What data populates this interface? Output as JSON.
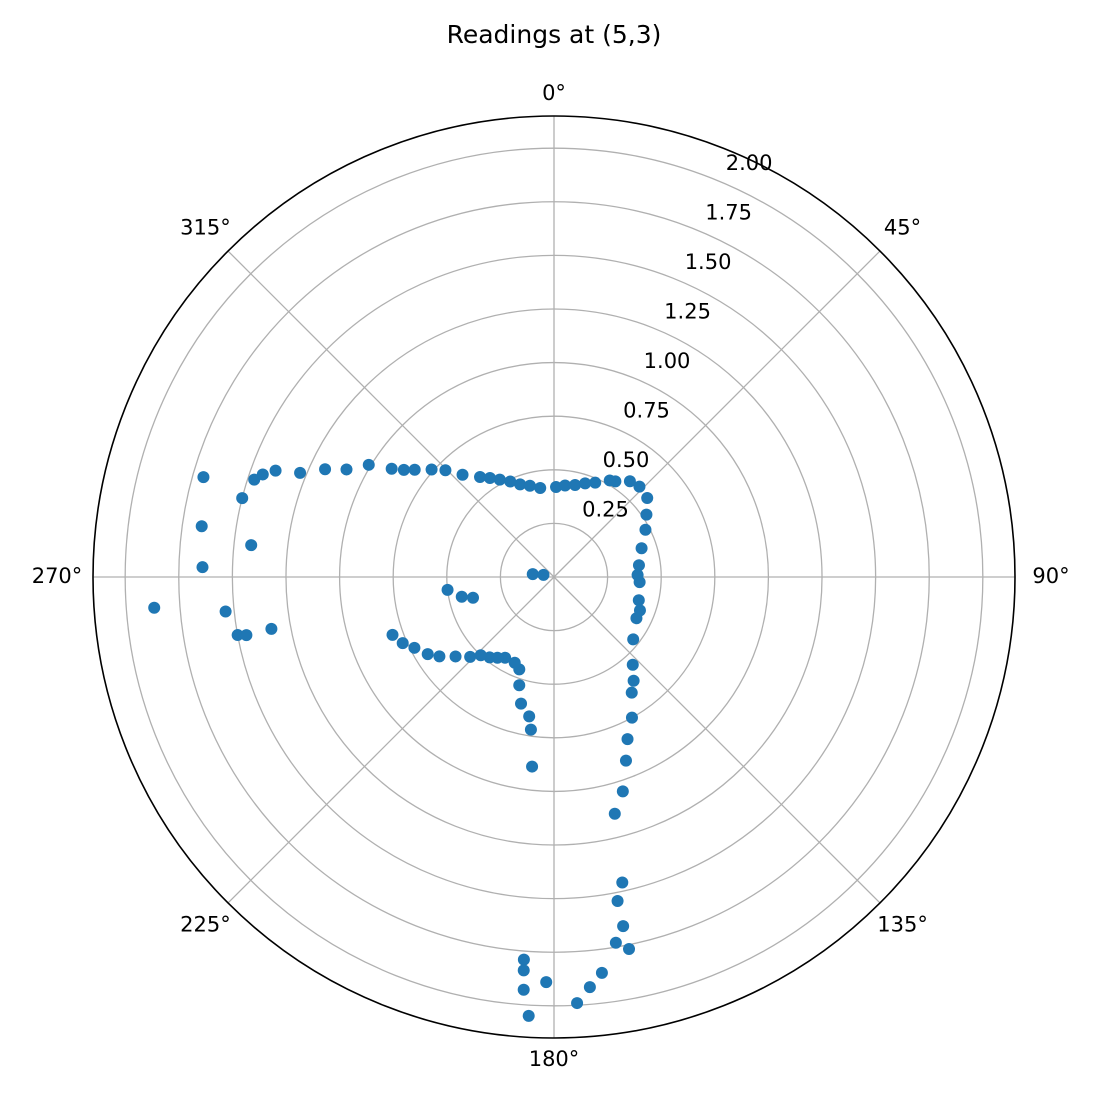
{
  "chart_data": {
    "type": "polar-scatter",
    "title": "Readings at (5,3)",
    "color": "#1f77b4",
    "ylim": [
      0,
      2.15
    ],
    "yticks": [
      {
        "value": 0.25,
        "label": "0.25"
      },
      {
        "value": 0.5,
        "label": "0.50"
      },
      {
        "value": 0.75,
        "label": "0.75"
      },
      {
        "value": 1.0,
        "label": "1.00"
      },
      {
        "value": 1.25,
        "label": "1.25"
      },
      {
        "value": 1.5,
        "label": "1.50"
      },
      {
        "value": 1.75,
        "label": "1.75"
      },
      {
        "value": 2.0,
        "label": "2.00"
      }
    ],
    "xticks": [
      {
        "value": 0,
        "label": "0°"
      },
      {
        "value": 45,
        "label": "45°"
      },
      {
        "value": 90,
        "label": "90°"
      },
      {
        "value": 135,
        "label": "135°"
      },
      {
        "value": 180,
        "label": "180°"
      },
      {
        "value": 225,
        "label": "225°"
      },
      {
        "value": 270,
        "label": "270°"
      },
      {
        "value": 315,
        "label": "315°"
      }
    ],
    "grid": true,
    "x": [
      285.9,
      278.2,
      271.6,
      265.6,
      264.0,
      259.6,
      259.3,
      259.6,
      276.0,
      284.2,
      288.0,
      289.4,
      290.9,
      292.3,
      295.2,
      297.4,
      301.2,
      303.7,
      305.5,
      307.6,
      311.3,
      314.5,
      318.2,
      323.5,
      330.9,
      339.9,
      351.2,
      1.3,
      12.9,
      23.6,
      32.7,
      38.4,
      43.4,
      49.7,
      56.0,
      62.7,
      71.8,
      82.1,
      93.4,
      105.3,
      116.6,
      128.2,
      138.1,
      146.1,
      151.0,
      155.6,
      158.6,
      162.2,
      165.6,
      167.4,
      168.9,
      168.8,
      170.4,
      168.6,
      173.1,
      175.0,
      176.9,
      181.1,
      184.5,
      184.4,
      184.2,
      183.3,
      186.6,
      188.6,
      190.1,
      194.6,
      197.8,
      200.6,
      204.6,
      211.2,
      218.7,
      226.4,
      231.1,
      235.3,
      238.6,
      243.1,
      246.4,
      250.3,
      263.1,
      257.9,
      255.6,
      277.8,
      281.3,
      30.0,
      18.4,
      6.9,
      345.2,
      335.4,
      327.1,
      88.6,
      111.2,
      142.5,
      215.0,
      223.1
    ],
    "values": [
      1.7,
      1.66,
      1.64,
      1.87,
      1.54,
      1.5,
      1.46,
      1.34,
      1.42,
      1.5,
      1.47,
      1.44,
      1.39,
      1.28,
      1.18,
      1.09,
      1.01,
      0.91,
      0.86,
      0.82,
      0.76,
      0.71,
      0.64,
      0.58,
      0.52,
      0.46,
      0.42,
      0.42,
      0.44,
      0.48,
      0.53,
      0.57,
      0.58,
      0.57,
      0.52,
      0.48,
      0.43,
      0.4,
      0.4,
      0.41,
      0.43,
      0.47,
      0.55,
      0.65,
      0.75,
      0.83,
      0.92,
      1.05,
      1.14,
      1.46,
      1.54,
      1.66,
      1.73,
      1.77,
      1.86,
      1.92,
      1.99,
      1.89,
      1.79,
      1.84,
      1.93,
      2.05,
      0.89,
      0.72,
      0.66,
      0.61,
      0.53,
      0.46,
      0.44,
      0.44,
      0.48,
      0.54,
      0.59,
      0.65,
      0.69,
      0.73,
      0.77,
      0.8,
      0.5,
      0.44,
      0.39,
      0.1,
      0.05,
      0.52,
      0.46,
      0.43,
      0.44,
      0.49,
      0.55,
      0.39,
      0.43,
      0.61,
      0.46,
      0.5
    ]
  }
}
